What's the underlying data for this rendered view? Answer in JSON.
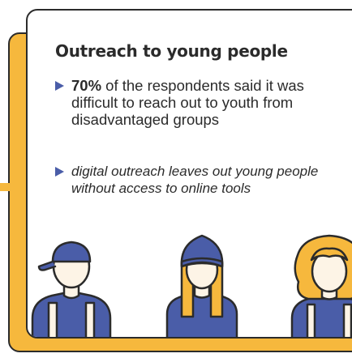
{
  "card": {
    "title": "Outreach to young people",
    "bullets": [
      {
        "highlight": "70%",
        "text": " of the respondents said it was difficult to reach out to youth from disadvantaged groups"
      },
      {
        "text": "digital outreach leaves out young people without access to online tools"
      }
    ]
  },
  "icons": [
    "bullet-triangle-icon",
    "person-with-cap-icon",
    "person-with-beanie-icon",
    "person-with-curly-hair-icon"
  ],
  "colors": {
    "accent_orange": "#f6b83d",
    "accent_blue": "#4a5da8",
    "outline": "#2b2b2b",
    "skin": "#fdf4e6"
  }
}
